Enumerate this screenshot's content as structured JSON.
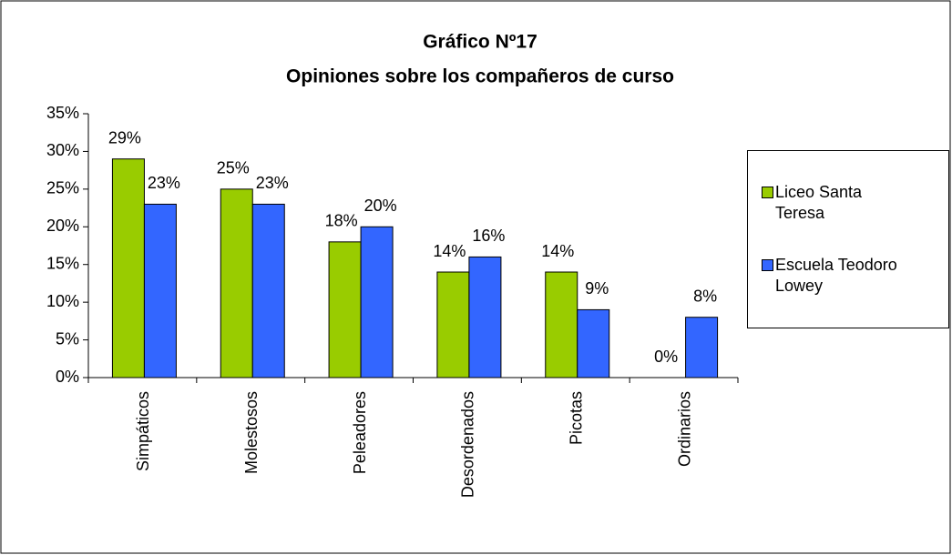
{
  "chart_data": {
    "type": "bar",
    "title": [
      "Gráfico Nº17",
      "Opiniones sobre los compañeros de curso"
    ],
    "categories": [
      "Simpáticos",
      "Molestosos",
      "Peleadores",
      "Desordenados",
      "Picotas",
      "Ordinarios"
    ],
    "series": [
      {
        "name": "Liceo Santa Teresa",
        "color": "#99cc00",
        "values": [
          29,
          25,
          18,
          14,
          14,
          0
        ],
        "value_labels": [
          "29%",
          "25%",
          "18%",
          "14%",
          "14%",
          "0%"
        ]
      },
      {
        "name": "Escuela Teodoro Lowey",
        "color": "#3366ff",
        "values": [
          23,
          23,
          20,
          16,
          9,
          8
        ],
        "value_labels": [
          "23%",
          "23%",
          "20%",
          "16%",
          "9%",
          "8%"
        ]
      }
    ],
    "ylim": [
      0,
      35
    ],
    "yticks": [
      {
        "value": 0,
        "label": "0%"
      },
      {
        "value": 5,
        "label": "5%"
      },
      {
        "value": 10,
        "label": "10%"
      },
      {
        "value": 15,
        "label": "15%"
      },
      {
        "value": 20,
        "label": "20%"
      },
      {
        "value": 25,
        "label": "25%"
      },
      {
        "value": 30,
        "label": "30%"
      },
      {
        "value": 35,
        "label": "35%"
      }
    ],
    "legend": "right"
  }
}
